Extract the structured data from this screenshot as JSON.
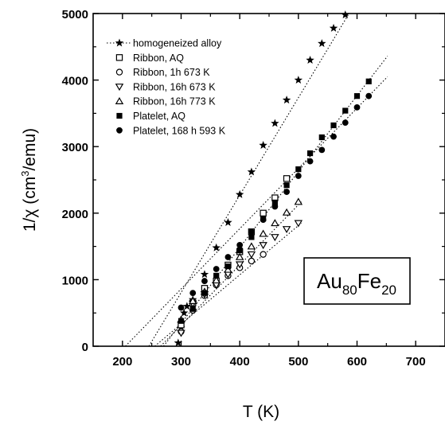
{
  "chart_data": {
    "type": "scatter",
    "title": "",
    "xlabel": "T (K)",
    "ylabel_main": "1/χ (cm",
    "ylabel_sup": "3",
    "ylabel_tail": "/emu)",
    "xlim": [
      150,
      750
    ],
    "ylim": [
      0,
      5000
    ],
    "xticks": [
      200,
      300,
      400,
      500,
      600,
      700
    ],
    "yticks": [
      0,
      1000,
      2000,
      3000,
      4000,
      5000
    ],
    "legend_position": "top-left",
    "annotation": {
      "main": "Au",
      "sub1": "80",
      "mid": "Fe",
      "sub2": "20"
    },
    "series": [
      {
        "name": "homogeneized alloy",
        "marker": "star",
        "x": [
          295,
          300,
          305,
          310,
          320,
          340,
          360,
          380,
          400,
          420,
          440,
          460,
          480,
          500,
          520,
          540,
          560,
          580
        ],
        "y": [
          50,
          280,
          500,
          600,
          700,
          1080,
          1480,
          1860,
          2280,
          2620,
          3020,
          3350,
          3700,
          4000,
          4300,
          4550,
          4780,
          4980
        ],
        "fit": [
          [
            245,
            0
          ],
          [
            585,
            4980
          ]
        ]
      },
      {
        "name": "Ribbon, AQ",
        "marker": "open-square",
        "x": [
          300,
          320,
          340,
          360,
          380,
          400,
          420,
          440,
          460,
          480
        ],
        "y": [
          320,
          650,
          870,
          980,
          1220,
          1420,
          1720,
          2000,
          2230,
          2520
        ],
        "fit": null
      },
      {
        "name": "Ribbon, 1h 673 K",
        "marker": "open-circle",
        "x": [
          300,
          320,
          340,
          360,
          380,
          400,
          420,
          440
        ],
        "y": [
          220,
          540,
          760,
          920,
          1060,
          1180,
          1280,
          1380
        ],
        "fit": null
      },
      {
        "name": "Ribbon, 16h 673 K",
        "marker": "open-triangle-down",
        "x": [
          300,
          320,
          340,
          360,
          380,
          400,
          420,
          440,
          460,
          480,
          500
        ],
        "y": [
          200,
          640,
          780,
          920,
          1080,
          1230,
          1380,
          1520,
          1640,
          1760,
          1850
        ],
        "fit": [
          [
            255,
            0
          ],
          [
            505,
            1850
          ]
        ]
      },
      {
        "name": "Ribbon, 16h 773 K",
        "marker": "open-triangle-up",
        "x": [
          300,
          320,
          340,
          360,
          380,
          400,
          420,
          440,
          460,
          480,
          500
        ],
        "y": [
          400,
          680,
          820,
          990,
          1150,
          1340,
          1500,
          1690,
          1850,
          2010,
          2170
        ],
        "fit": [
          [
            265,
            0
          ],
          [
            505,
            2170
          ]
        ]
      },
      {
        "name": "Platelet, AQ",
        "marker": "filled-square",
        "x": [
          300,
          320,
          340,
          360,
          380,
          400,
          420,
          440,
          460,
          480,
          500,
          520,
          540,
          560,
          580,
          600,
          620
        ],
        "y": [
          380,
          560,
          800,
          1060,
          1200,
          1440,
          1640,
          1920,
          2160,
          2420,
          2660,
          2900,
          3140,
          3320,
          3540,
          3760,
          3980
        ],
        "fit": [
          [
            270,
            0
          ],
          [
            652,
            4360
          ]
        ]
      },
      {
        "name": "Platelet, 168 h 593 K",
        "marker": "filled-circle",
        "x": [
          300,
          320,
          340,
          360,
          380,
          400,
          420,
          440,
          460,
          480,
          500,
          520,
          540,
          560,
          580,
          600,
          620
        ],
        "y": [
          580,
          800,
          980,
          1160,
          1340,
          1520,
          1720,
          1900,
          2100,
          2320,
          2560,
          2780,
          2950,
          3150,
          3360,
          3590,
          3760
        ],
        "fit": [
          [
            205,
            0
          ],
          [
            652,
            4050
          ]
        ]
      }
    ]
  }
}
